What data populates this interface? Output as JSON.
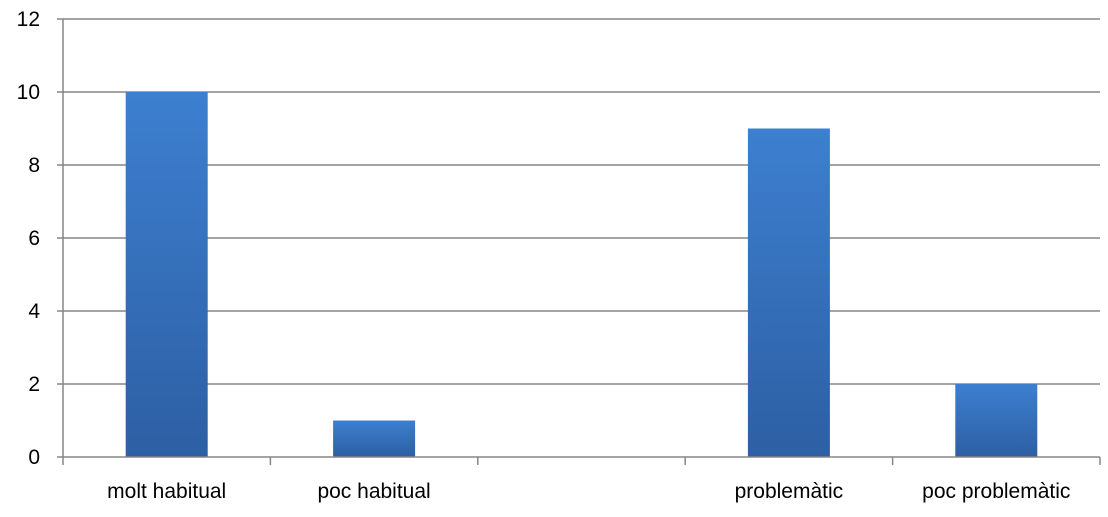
{
  "chart_data": {
    "type": "bar",
    "categories": [
      "molt habitual",
      "poc habitual",
      "",
      "problemàtic",
      "poc problemàtic"
    ],
    "values": [
      10,
      1,
      null,
      9,
      2
    ],
    "title": "",
    "xlabel": "",
    "ylabel": "",
    "ylim": [
      0,
      12
    ],
    "yticks": [
      0,
      2,
      4,
      6,
      8,
      10,
      12
    ],
    "grid": true,
    "legend": "none",
    "colors": {
      "bar_top": "#3d7fd0",
      "bar_bottom": "#2d5fa3",
      "grid": "#868686",
      "axis": "#868686"
    }
  }
}
